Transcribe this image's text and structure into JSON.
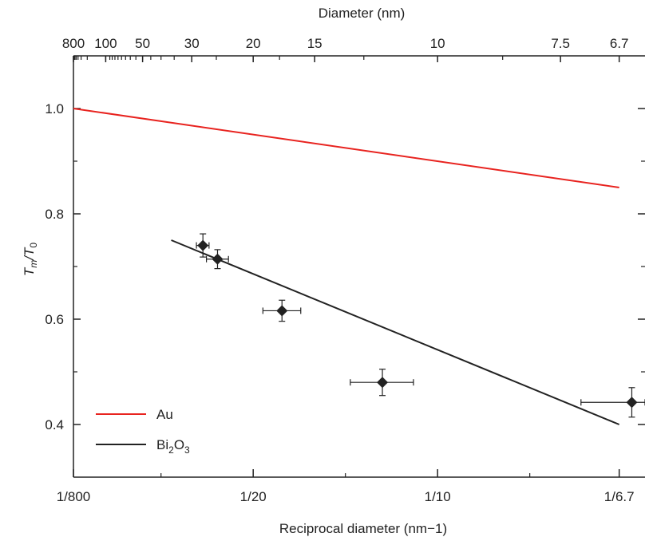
{
  "chart_data": {
    "type": "scatter",
    "title": "",
    "xlabel": "Reciprocal diameter (nm−1)",
    "x2label": "Diameter (nm)",
    "ylabel_main": "T",
    "ylabel_sub1": "m",
    "ylabel_slash": "/T",
    "ylabel_sub2": "0",
    "x_scale": "reciprocal",
    "xlim": [
      800,
      6.4
    ],
    "ylim": [
      0.3,
      1.1
    ],
    "x_ticks": [
      {
        "value": 800,
        "label": "1/800"
      },
      {
        "value": 20,
        "label": "1/20"
      },
      {
        "value": 10,
        "label": "1/10"
      },
      {
        "value": 6.7,
        "label": "1/6.7"
      }
    ],
    "x_minor_ticks": [
      40,
      13.333,
      8
    ],
    "x2_ticks": [
      {
        "value": 800,
        "label": "800"
      },
      {
        "value": 100,
        "label": "100"
      },
      {
        "value": 50,
        "label": "50"
      },
      {
        "value": 30,
        "label": "30"
      },
      {
        "value": 20,
        "label": "20"
      },
      {
        "value": 15,
        "label": "15"
      },
      {
        "value": 10,
        "label": "10"
      },
      {
        "value": 7.5,
        "label": "7.5"
      },
      {
        "value": 6.7,
        "label": "6.7"
      }
    ],
    "y_ticks": [
      {
        "value": 0.4,
        "label": "0.4"
      },
      {
        "value": 0.6,
        "label": "0.6"
      },
      {
        "value": 0.8,
        "label": "0.8"
      },
      {
        "value": 1.0,
        "label": "1.0"
      }
    ],
    "y_minor_ticks": [
      0.5,
      0.7,
      0.9
    ],
    "grid": false,
    "legend_position": "bottom-left",
    "series": [
      {
        "name": "Au",
        "kind": "line",
        "color": "#e8231f",
        "x": [
          800,
          6.7
        ],
        "y": [
          1.0,
          0.85
        ]
      },
      {
        "name_main": "Bi",
        "name_sub1": "2",
        "name_mid": "O",
        "name_sub2": "3",
        "kind": "fit-line",
        "color": "#222222",
        "x": [
          36,
          6.7
        ],
        "y": [
          0.75,
          0.4
        ]
      },
      {
        "kind": "points",
        "marker": "diamond",
        "color": "#222222",
        "points": [
          {
            "x": 27.5,
            "y": 0.74,
            "x_err_lo": 26.3,
            "x_err_hi": 28.9,
            "y_err": 0.022
          },
          {
            "x": 24.8,
            "y": 0.714,
            "x_err_lo": 23.1,
            "x_err_hi": 26.8,
            "y_err": 0.018
          },
          {
            "x": 17.3,
            "y": 0.616,
            "x_err_lo": 15.9,
            "x_err_hi": 19.0,
            "y_err": 0.02
          },
          {
            "x": 11.76,
            "y": 0.48,
            "x_err_lo": 10.7,
            "x_err_hi": 13.1,
            "y_err": 0.025
          },
          {
            "x": 6.55,
            "y": 0.442,
            "x_err_lo": 6.4,
            "x_err_hi": 7.2,
            "y_err": 0.028
          }
        ]
      }
    ]
  }
}
